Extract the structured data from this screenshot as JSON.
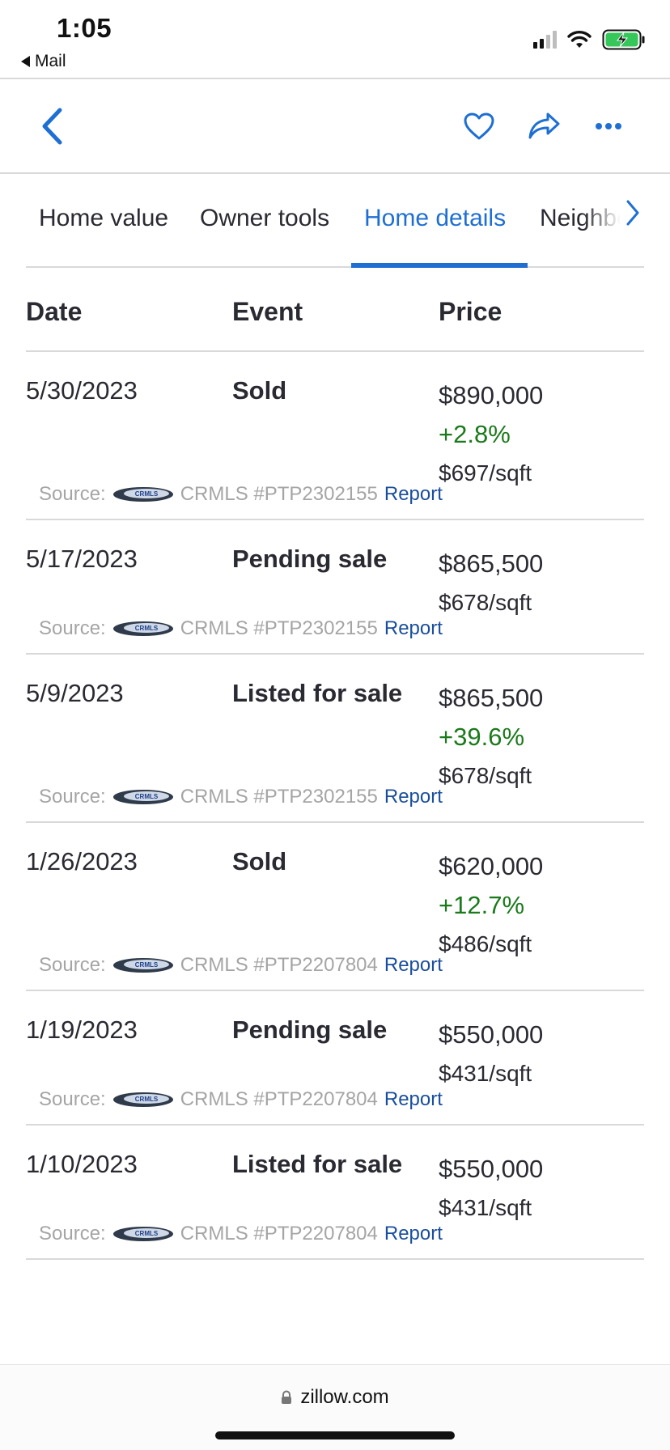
{
  "status_bar": {
    "time": "1:05",
    "back_app": "Mail"
  },
  "toolbar": {
    "icons": [
      "chevron-left-icon",
      "heart-icon",
      "share-icon",
      "more-icon"
    ],
    "accent_color": "#1f6fd3"
  },
  "tabs": [
    {
      "label": "Home value",
      "active": false
    },
    {
      "label": "Owner tools",
      "active": false
    },
    {
      "label": "Home details",
      "active": true
    },
    {
      "label": "Neighborhood",
      "active": false
    }
  ],
  "table": {
    "headers": {
      "date": "Date",
      "event": "Event",
      "price": "Price"
    },
    "rows": [
      {
        "date": "5/30/2023",
        "event": "Sold",
        "price": "$890,000",
        "change": "+2.8%",
        "sqft": "$697/sqft",
        "source_label": "Source:",
        "source_text": "CRMLS #PTP2302155",
        "report": "Report"
      },
      {
        "date": "5/17/2023",
        "event": "Pending sale",
        "price": "$865,500",
        "change": "",
        "sqft": "$678/sqft",
        "source_label": "Source:",
        "source_text": "CRMLS #PTP2302155",
        "report": "Report"
      },
      {
        "date": "5/9/2023",
        "event": "Listed for sale",
        "price": "$865,500",
        "change": "+39.6%",
        "sqft": "$678/sqft",
        "source_label": "Source:",
        "source_text": "CRMLS #PTP2302155",
        "report": "Report"
      },
      {
        "date": "1/26/2023",
        "event": "Sold",
        "price": "$620,000",
        "change": "+12.7%",
        "sqft": "$486/sqft",
        "source_label": "Source:",
        "source_text": "CRMLS #PTP2207804",
        "report": "Report"
      },
      {
        "date": "1/19/2023",
        "event": "Pending sale",
        "price": "$550,000",
        "change": "",
        "sqft": "$431/sqft",
        "source_label": "Source:",
        "source_text": "CRMLS #PTP2207804",
        "report": "Report"
      },
      {
        "date": "1/10/2023",
        "event": "Listed for sale",
        "price": "$550,000",
        "change": "",
        "sqft": "$431/sqft",
        "source_label": "Source:",
        "source_text": "CRMLS #PTP2207804",
        "report": "Report"
      }
    ]
  },
  "bottom_bar": {
    "url": "zillow.com"
  },
  "colors": {
    "positive_change": "#1b7a1b",
    "report_link": "#1a4e9c",
    "source_gray": "#a5a5a5"
  }
}
